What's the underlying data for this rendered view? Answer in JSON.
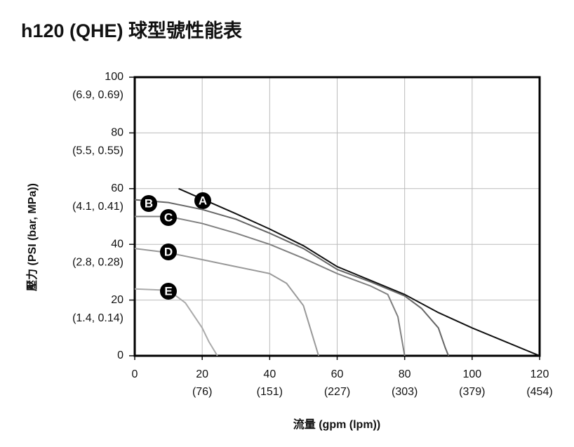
{
  "chart_data": {
    "type": "line",
    "title": "h120 (QHE) 球型號性能表",
    "xlabel": "流量 (gpm (lpm))",
    "ylabel": "壓力 (PSI (bar, MPa))",
    "xlim": [
      0,
      120
    ],
    "ylim": [
      0,
      100
    ],
    "xticks": [
      0,
      20,
      40,
      60,
      80,
      100,
      120
    ],
    "xtick_sublabels": [
      null,
      "(76)",
      "(151)",
      "(227)",
      "(303)",
      "(379)",
      "(454)"
    ],
    "yticks": [
      0,
      20,
      40,
      60,
      80,
      100
    ],
    "ytick_sublabels": [
      null,
      "(1.4, 0.14)",
      "(2.8, 0.28)",
      "(4.1, 0.41)",
      "(5.5, 0.55)",
      "(6.9, 0.69)"
    ],
    "grid": true,
    "series": [
      {
        "name": "A",
        "color": "#111111",
        "x": [
          13,
          30,
          40,
          50,
          60,
          70,
          80,
          90,
          100,
          110,
          120
        ],
        "values": [
          60,
          51,
          45.5,
          39.5,
          32,
          27,
          22,
          15.5,
          10,
          5,
          0
        ]
      },
      {
        "name": "B",
        "color": "#666666",
        "x": [
          0,
          10,
          20,
          30,
          40,
          50,
          60,
          70,
          80,
          85,
          90,
          92,
          93
        ],
        "values": [
          56,
          55,
          52.5,
          49,
          44,
          38.5,
          31,
          26.5,
          21.5,
          17,
          10,
          3,
          0
        ]
      },
      {
        "name": "C",
        "color": "#808080",
        "x": [
          0,
          10,
          20,
          30,
          40,
          50,
          60,
          70,
          75,
          78,
          80
        ],
        "values": [
          50,
          50,
          47.5,
          44,
          40,
          35,
          29.5,
          25,
          22,
          14,
          0
        ]
      },
      {
        "name": "D",
        "color": "#999999",
        "x": [
          0,
          10,
          20,
          30,
          40,
          45,
          50,
          52,
          54.5
        ],
        "values": [
          38.5,
          37,
          34.5,
          32,
          29.5,
          26,
          18,
          10,
          0
        ]
      },
      {
        "name": "E",
        "color": "#aaaaaa",
        "x": [
          0,
          10,
          15,
          20,
          22,
          24.5
        ],
        "values": [
          24,
          23.5,
          19,
          10,
          5,
          0
        ]
      }
    ]
  }
}
